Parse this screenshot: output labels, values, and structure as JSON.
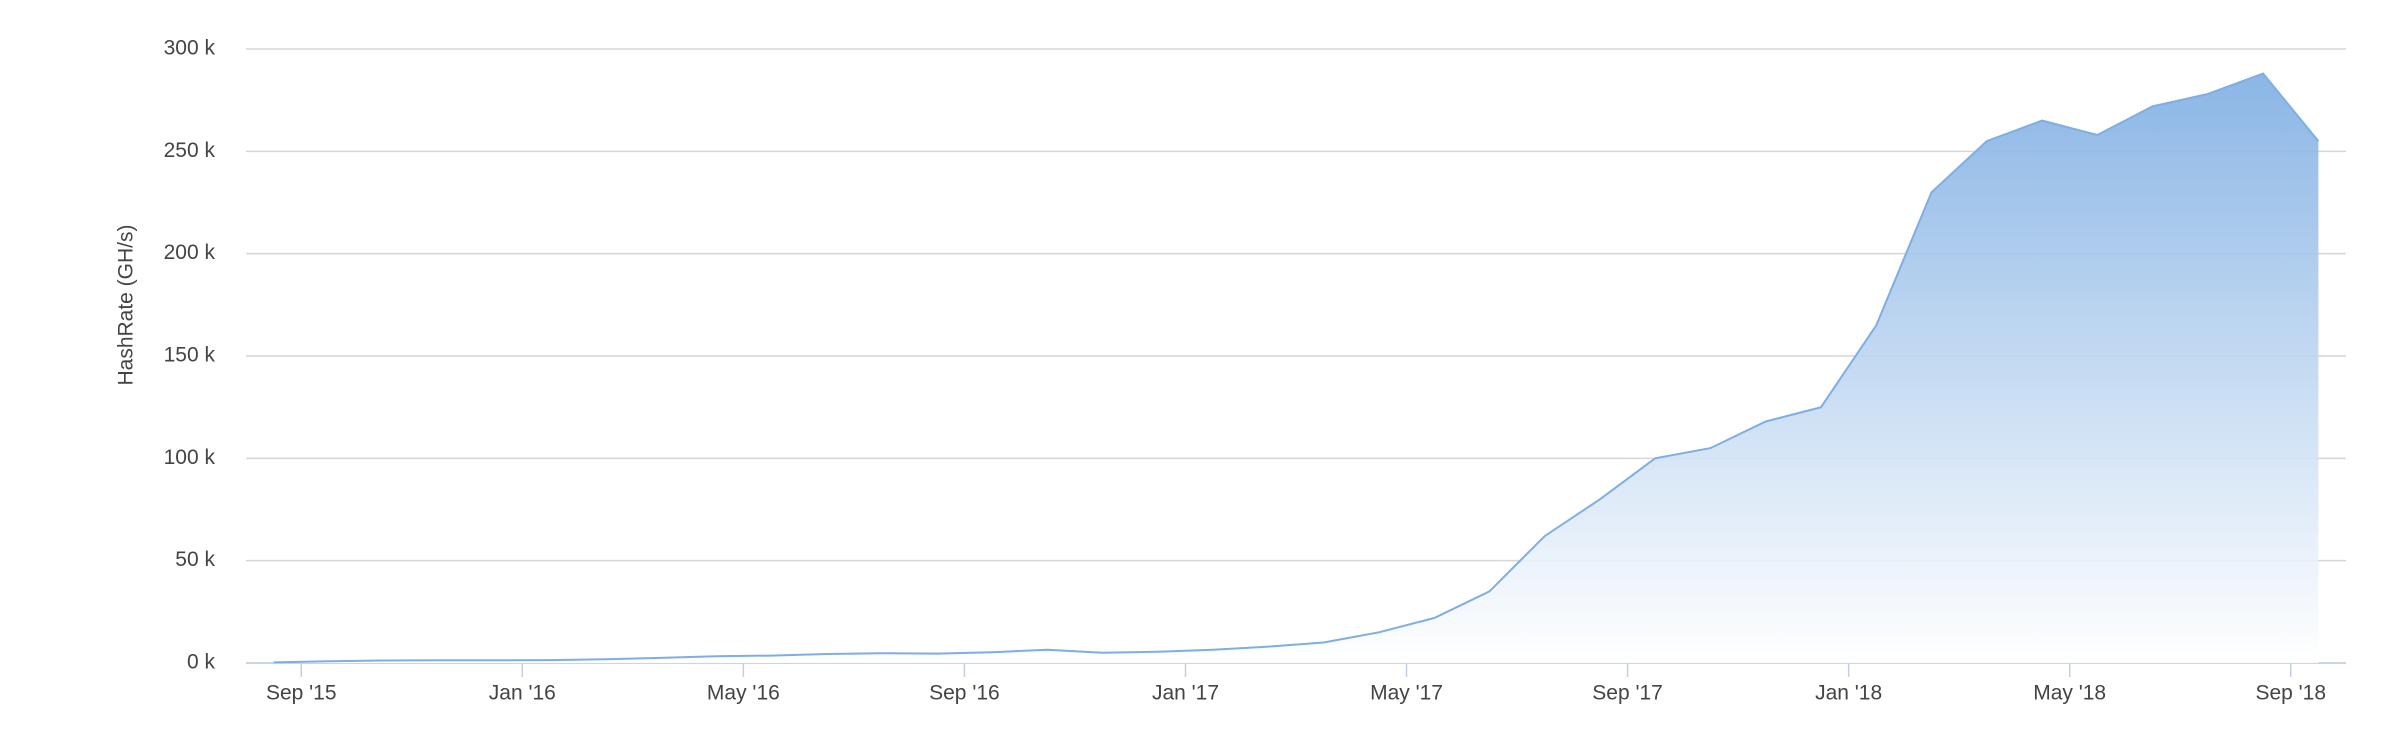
{
  "chart_data": {
    "type": "area",
    "y_label": "HashRate (GH/s)",
    "color": "#7eaee3",
    "grid": true,
    "x": [
      "2015-08",
      "2015-09",
      "2015-10",
      "2015-11",
      "2015-12",
      "2016-01",
      "2016-02",
      "2016-03",
      "2016-04",
      "2016-05",
      "2016-06",
      "2016-07",
      "2016-08",
      "2016-09",
      "2016-10",
      "2016-11",
      "2016-12",
      "2017-01",
      "2017-02",
      "2017-03",
      "2017-04",
      "2017-05",
      "2017-06",
      "2017-07",
      "2017-08",
      "2017-09",
      "2017-10",
      "2017-11",
      "2017-12",
      "2018-01",
      "2018-02",
      "2018-03",
      "2018-04",
      "2018-05",
      "2018-06",
      "2018-07",
      "2018-08",
      "2018-09"
    ],
    "values": [
      300,
      900,
      1200,
      1300,
      1300,
      1400,
      1800,
      2500,
      3300,
      3600,
      4400,
      4800,
      4600,
      5300,
      6500,
      5000,
      5500,
      6500,
      8000,
      10000,
      15000,
      22000,
      35000,
      62000,
      80000,
      100000,
      105000,
      118000,
      125000,
      165000,
      230000,
      255000,
      265000,
      258000,
      272000,
      278000,
      288000,
      255000
    ],
    "xlim": [
      "2015-08",
      "2018-10"
    ],
    "xticks": [
      {
        "value": "2015-09",
        "label": "Sep '15"
      },
      {
        "value": "2016-01",
        "label": "Jan '16"
      },
      {
        "value": "2016-05",
        "label": "May '16"
      },
      {
        "value": "2016-09",
        "label": "Sep '16"
      },
      {
        "value": "2017-01",
        "label": "Jan '17"
      },
      {
        "value": "2017-05",
        "label": "May '17"
      },
      {
        "value": "2017-09",
        "label": "Sep '17"
      },
      {
        "value": "2018-01",
        "label": "Jan '18"
      },
      {
        "value": "2018-05",
        "label": "May '18"
      },
      {
        "value": "2018-09",
        "label": "Sep '18"
      }
    ],
    "ylim": [
      0,
      300000
    ],
    "yticks": [
      {
        "value": 0,
        "label": "0 k"
      },
      {
        "value": 50000,
        "label": "50 k"
      },
      {
        "value": 100000,
        "label": "100 k"
      },
      {
        "value": 150000,
        "label": "150 k"
      },
      {
        "value": 200000,
        "label": "200 k"
      },
      {
        "value": 250000,
        "label": "250 k"
      },
      {
        "value": 300000,
        "label": "300 k"
      }
    ]
  }
}
